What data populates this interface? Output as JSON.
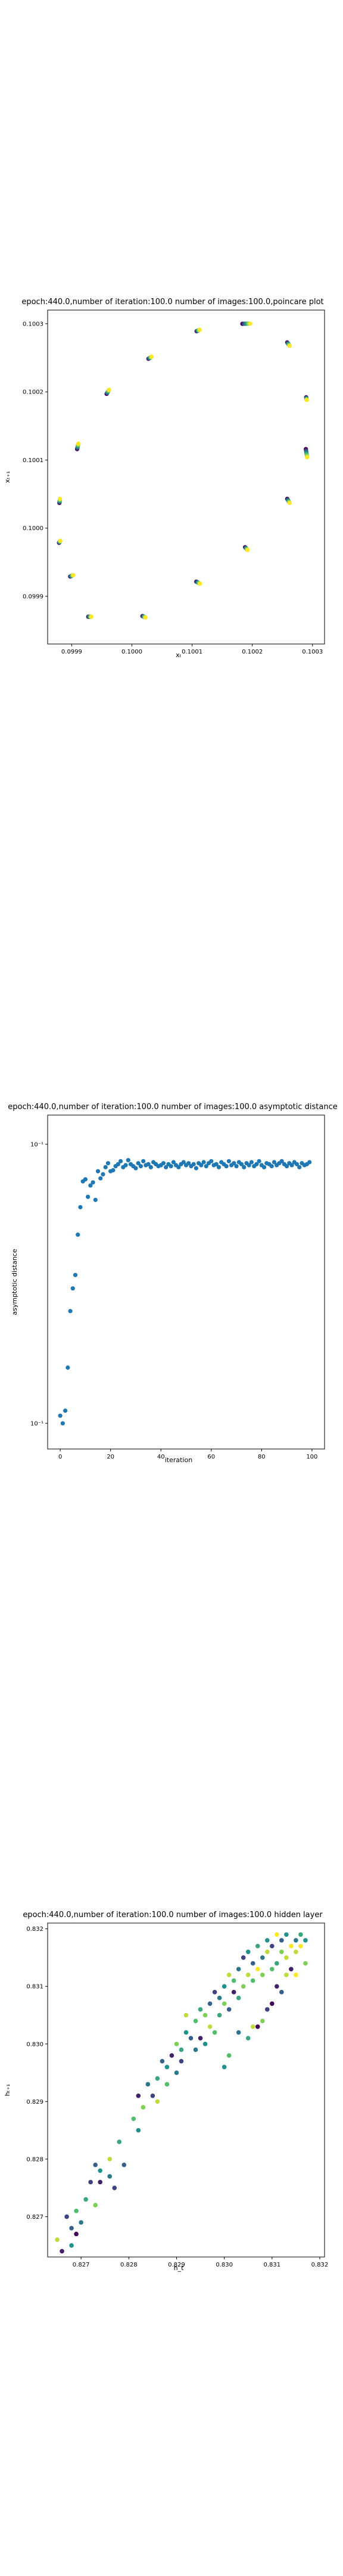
{
  "chart_data": [
    {
      "type": "scatter",
      "title": "epoch:440.0,number of iteration:100.0  number of images:100.0,poincare plot",
      "xlabel": "xₜ",
      "ylabel": "xₜ₊₁",
      "xlim": [
        0.09986,
        0.10032
      ],
      "ylim": [
        0.09983,
        0.10032
      ],
      "xticks": [
        "0.0999",
        "0.1000",
        "0.1001",
        "0.1002",
        "0.1003"
      ],
      "xtick_values": [
        0.0999,
        0.1,
        0.1001,
        0.1002,
        0.1003
      ],
      "yticks": [
        "0.0999",
        "0.1000",
        "0.1001",
        "0.1002",
        "0.1003"
      ],
      "ytick_values": [
        0.0999,
        0.1,
        0.1001,
        0.1002,
        0.1003
      ],
      "colormap": "viridis",
      "clusters": [
        {
          "x": 0.10019,
          "y": 0.1003,
          "dx": 1.3e-05,
          "dy": 3e-07
        },
        {
          "x": 0.10026,
          "y": 0.10027,
          "dx": 4e-06,
          "dy": -5e-06
        },
        {
          "x": 0.10029,
          "y": 0.10019,
          "dx": 1e-06,
          "dy": -4e-06
        },
        {
          "x": 0.10029,
          "y": 0.10011,
          "dx": 2e-06,
          "dy": -1.2e-05
        },
        {
          "x": 0.10026,
          "y": 0.10004,
          "dx": 4e-06,
          "dy": -6e-06
        },
        {
          "x": 0.10019,
          "y": 0.09997,
          "dx": 4e-06,
          "dy": -4e-06
        },
        {
          "x": 0.10011,
          "y": 0.09992,
          "dx": 6e-06,
          "dy": -3e-06
        },
        {
          "x": 0.10002,
          "y": 0.09987,
          "dx": 5e-06,
          "dy": -2e-06
        },
        {
          "x": 0.09993,
          "y": 0.09987,
          "dx": 5e-06,
          "dy": 0.0
        },
        {
          "x": 0.0999,
          "y": 0.09993,
          "dx": 5e-06,
          "dy": 2e-06
        },
        {
          "x": 0.09988,
          "y": 0.09998,
          "dx": 2e-06,
          "dy": 3e-06
        },
        {
          "x": 0.09988,
          "y": 0.10004,
          "dx": 1e-06,
          "dy": 6e-06
        },
        {
          "x": 0.09991,
          "y": 0.10012,
          "dx": 2e-06,
          "dy": 8e-06
        },
        {
          "x": 0.09996,
          "y": 0.1002,
          "dx": 4e-06,
          "dy": 6e-06
        },
        {
          "x": 0.10003,
          "y": 0.10025,
          "dx": 5e-06,
          "dy": 3e-06
        },
        {
          "x": 0.10011,
          "y": 0.10029,
          "dx": 5e-06,
          "dy": 2e-06
        }
      ]
    },
    {
      "type": "scatter",
      "title": "epoch:440.0,number of iteration:100.0  number of images:100.0 asymptotic distance",
      "xlabel": "iteration",
      "ylabel": "asymptotic distance",
      "xscale": "linear",
      "yscale": "log",
      "xlim": [
        -5,
        105
      ],
      "ylim": [
        0.085,
        0.115
      ],
      "xticks": [
        "0",
        "20",
        "40",
        "60",
        "80",
        "100"
      ],
      "xtick_values": [
        0,
        20,
        40,
        60,
        80,
        100
      ],
      "yticks": [
        "10⁻¹",
        "10⁻¹"
      ],
      "ytick_values": [
        0.087,
        0.112
      ],
      "color": "#1f77b4",
      "x": [
        0,
        1,
        2,
        3,
        4,
        5,
        6,
        7,
        8,
        9,
        10,
        11,
        12,
        13,
        14,
        15,
        16,
        17,
        18,
        19,
        20,
        21,
        22,
        23,
        24,
        25,
        26,
        27,
        28,
        29,
        30,
        31,
        32,
        33,
        34,
        35,
        36,
        37,
        38,
        39,
        40,
        41,
        42,
        43,
        44,
        45,
        46,
        47,
        48,
        49,
        50,
        51,
        52,
        53,
        54,
        55,
        56,
        57,
        58,
        59,
        60,
        61,
        62,
        63,
        64,
        65,
        66,
        67,
        68,
        69,
        70,
        71,
        72,
        73,
        74,
        75,
        76,
        77,
        78,
        79,
        80,
        81,
        82,
        83,
        84,
        85,
        86,
        87,
        88,
        89,
        90,
        91,
        92,
        93,
        94,
        95,
        96,
        97,
        98,
        99
      ],
      "y": [
        0.0876,
        0.087,
        0.088,
        0.0915,
        0.0963,
        0.0983,
        0.0995,
        0.1032,
        0.1058,
        0.1083,
        0.1085,
        0.1068,
        0.1079,
        0.1082,
        0.1065,
        0.1093,
        0.1086,
        0.109,
        0.1097,
        0.1101,
        0.1093,
        0.1094,
        0.1098,
        0.11,
        0.1103,
        0.1097,
        0.1099,
        0.1104,
        0.11,
        0.1098,
        0.1096,
        0.1101,
        0.1098,
        0.1103,
        0.1099,
        0.11,
        0.1097,
        0.1102,
        0.11,
        0.1098,
        0.1099,
        0.1101,
        0.1097,
        0.11,
        0.1098,
        0.1102,
        0.1099,
        0.1097,
        0.11,
        0.1102,
        0.1099,
        0.1101,
        0.1098,
        0.11,
        0.1096,
        0.1101,
        0.1099,
        0.1102,
        0.1098,
        0.1101,
        0.1103,
        0.1099,
        0.11,
        0.1097,
        0.1102,
        0.11,
        0.1098,
        0.1103,
        0.1099,
        0.1101,
        0.1098,
        0.1102,
        0.11,
        0.1097,
        0.1101,
        0.1099,
        0.1102,
        0.1098,
        0.11,
        0.1103,
        0.1099,
        0.1097,
        0.1101,
        0.11,
        0.1098,
        0.1102,
        0.1099,
        0.1101,
        0.1103,
        0.11,
        0.1098,
        0.1101,
        0.1099,
        0.1102,
        0.11,
        0.1097,
        0.1101,
        0.1099,
        0.11,
        0.1102
      ]
    },
    {
      "type": "scatter",
      "title": "epoch:440.0,number of iteration:100.0  number of images:100.0 hidden layer",
      "xlabel": "h_t",
      "ylabel": "hₜ₊₁",
      "xlim": [
        0.8263,
        0.8321
      ],
      "ylim": [
        0.8263,
        0.8321
      ],
      "xticks": [
        "0.827",
        "0.828",
        "0.829",
        "0.830",
        "0.831",
        "0.832"
      ],
      "xtick_values": [
        0.827,
        0.828,
        0.829,
        0.83,
        0.831,
        0.832
      ],
      "yticks": [
        "0.827",
        "0.828",
        "0.829",
        "0.830",
        "0.831",
        "0.832"
      ],
      "ytick_values": [
        0.827,
        0.828,
        0.829,
        0.83,
        0.831,
        0.832
      ],
      "colormap": "viridis",
      "x": [
        0.8265,
        0.8266,
        0.8267,
        0.8268,
        0.8268,
        0.8269,
        0.8269,
        0.827,
        0.8271,
        0.8272,
        0.8273,
        0.8273,
        0.8274,
        0.8274,
        0.8276,
        0.8276,
        0.8277,
        0.8278,
        0.8279,
        0.8281,
        0.8282,
        0.8282,
        0.8283,
        0.8284,
        0.8285,
        0.8286,
        0.8286,
        0.8287,
        0.8288,
        0.8288,
        0.8289,
        0.829,
        0.829,
        0.8291,
        0.8291,
        0.8292,
        0.8292,
        0.8293,
        0.8294,
        0.8294,
        0.8295,
        0.8295,
        0.8296,
        0.8296,
        0.8297,
        0.8297,
        0.8298,
        0.8298,
        0.8299,
        0.8299,
        0.83,
        0.83,
        0.8301,
        0.8301,
        0.8302,
        0.8302,
        0.8303,
        0.8303,
        0.8304,
        0.8304,
        0.8305,
        0.8305,
        0.8306,
        0.8306,
        0.8307,
        0.8307,
        0.8308,
        0.8308,
        0.8309,
        0.8309,
        0.831,
        0.831,
        0.8311,
        0.8311,
        0.8312,
        0.8312,
        0.8313,
        0.8313,
        0.8314,
        0.8314,
        0.8315,
        0.8315,
        0.8316,
        0.8316,
        0.8317,
        0.8317,
        0.8307,
        0.8311,
        0.8305,
        0.831,
        0.8313,
        0.8303,
        0.8309,
        0.8301,
        0.8315,
        0.8312,
        0.83,
        0.8308,
        0.8314,
        0.8306
      ],
      "y": [
        0.8266,
        0.8264,
        0.827,
        0.8265,
        0.8268,
        0.8271,
        0.8267,
        0.8269,
        0.8273,
        0.8276,
        0.8272,
        0.8279,
        0.8278,
        0.8276,
        0.8277,
        0.828,
        0.8275,
        0.8283,
        0.8279,
        0.8287,
        0.8285,
        0.8291,
        0.8289,
        0.8293,
        0.8291,
        0.8294,
        0.829,
        0.8297,
        0.8296,
        0.8293,
        0.8298,
        0.8295,
        0.83,
        0.8299,
        0.8297,
        0.8302,
        0.8305,
        0.8301,
        0.8304,
        0.8299,
        0.8306,
        0.8301,
        0.8305,
        0.83,
        0.8307,
        0.8303,
        0.8309,
        0.8302,
        0.8308,
        0.8305,
        0.831,
        0.8307,
        0.8306,
        0.8312,
        0.8309,
        0.8311,
        0.8308,
        0.8313,
        0.831,
        0.8315,
        0.8312,
        0.8316,
        0.8311,
        0.8314,
        0.8317,
        0.8313,
        0.8315,
        0.8312,
        0.8318,
        0.8316,
        0.8313,
        0.8317,
        0.8319,
        0.8314,
        0.8316,
        0.8318,
        0.8315,
        0.8319,
        0.8317,
        0.8313,
        0.8318,
        0.8316,
        0.8319,
        0.8317,
        0.8314,
        0.8318,
        0.8303,
        0.831,
        0.8301,
        0.8307,
        0.8312,
        0.8302,
        0.8306,
        0.8298,
        0.8312,
        0.8309,
        0.8296,
        0.8304,
        0.8313,
        0.8303
      ],
      "c": [
        0.9,
        0.1,
        0.2,
        0.5,
        0.3,
        0.7,
        0.0,
        0.4,
        0.6,
        0.2,
        0.8,
        0.3,
        0.5,
        0.1,
        0.4,
        0.9,
        0.2,
        0.6,
        0.3,
        0.7,
        0.5,
        0.1,
        0.8,
        0.4,
        0.2,
        0.6,
        0.9,
        0.3,
        0.5,
        0.7,
        0.1,
        0.4,
        0.8,
        0.6,
        0.2,
        0.5,
        0.9,
        0.3,
        0.7,
        0.4,
        0.6,
        0.1,
        0.8,
        0.5,
        0.3,
        0.9,
        0.2,
        0.7,
        0.4,
        0.6,
        0.5,
        0.8,
        0.3,
        0.9,
        0.1,
        0.7,
        0.6,
        0.4,
        0.8,
        0.2,
        0.9,
        0.5,
        0.7,
        0.3,
        0.6,
        1.0,
        0.4,
        0.8,
        0.5,
        0.9,
        0.7,
        0.2,
        1.0,
        0.6,
        0.8,
        0.3,
        0.9,
        0.5,
        1.0,
        0.7,
        0.4,
        0.9,
        0.6,
        1.0,
        0.8,
        0.5,
        0.0,
        0.1,
        0.6,
        0.0,
        0.9,
        0.4,
        0.2,
        0.7,
        1.0,
        0.3,
        0.5,
        0.8,
        0.1,
        0.9
      ]
    }
  ]
}
